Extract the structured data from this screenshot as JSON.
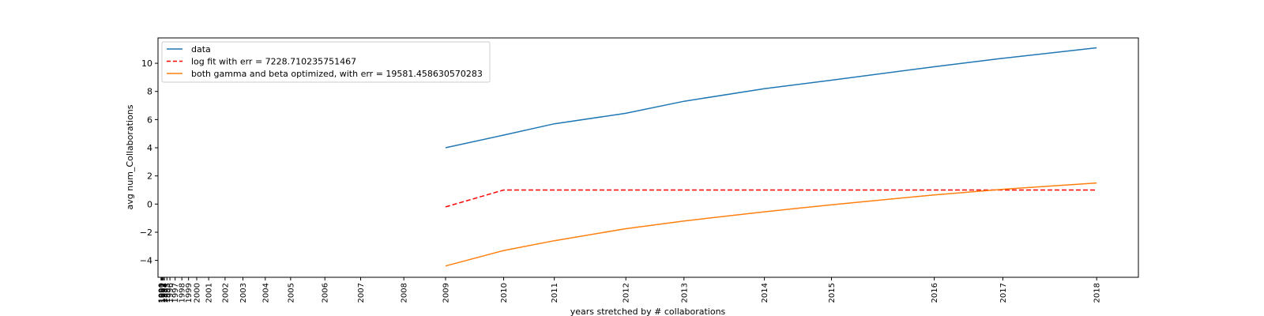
{
  "chart_data": {
    "type": "line",
    "title": "",
    "xlabel": "years stretched by # collaborations",
    "ylabel": "avg num_Collaborations",
    "x_ticks": [
      {
        "label": "1990",
        "pos": 0.0
      },
      {
        "label": "1991",
        "pos": 0.5
      },
      {
        "label": "1992",
        "pos": 1.0
      },
      {
        "label": "1993",
        "pos": 1.6
      },
      {
        "label": "1994",
        "pos": 2.3
      },
      {
        "label": "1995",
        "pos": 4.0
      },
      {
        "label": "1996",
        "pos": 6.0
      },
      {
        "label": "1997",
        "pos": 9.5
      },
      {
        "label": "1998",
        "pos": 14.0
      },
      {
        "label": "1999",
        "pos": 18.5
      },
      {
        "label": "2000",
        "pos": 24.0
      },
      {
        "label": "2001",
        "pos": 32.0
      },
      {
        "label": "2002",
        "pos": 43.0
      },
      {
        "label": "2003",
        "pos": 55.0
      },
      {
        "label": "2004",
        "pos": 70.0
      },
      {
        "label": "2005",
        "pos": 87.0
      },
      {
        "label": "2006",
        "pos": 110.0
      },
      {
        "label": "2007",
        "pos": 134.0
      },
      {
        "label": "2008",
        "pos": 163.0
      },
      {
        "label": "2009",
        "pos": 191.0
      },
      {
        "label": "2010",
        "pos": 230.0
      },
      {
        "label": "2011",
        "pos": 264.0
      },
      {
        "label": "2012",
        "pos": 312.0
      },
      {
        "label": "2013",
        "pos": 351.0
      },
      {
        "label": "2014",
        "pos": 405.0
      },
      {
        "label": "2015",
        "pos": 450.0
      },
      {
        "label": "2016",
        "pos": 519.0
      },
      {
        "label": "2017",
        "pos": 565.0
      },
      {
        "label": "2018",
        "pos": 628.0
      }
    ],
    "xlim": [
      -2,
      656
    ],
    "ylim": [
      -5.2,
      11.8
    ],
    "y_ticks": [
      -4,
      -2,
      0,
      2,
      4,
      6,
      8,
      10
    ],
    "x": [
      191.0,
      230.0,
      264.0,
      312.0,
      351.0,
      405.0,
      450.0,
      519.0,
      565.0,
      628.0
    ],
    "series": [
      {
        "name": "data",
        "color": "#1f77b4",
        "dash": "solid",
        "values": [
          4.0,
          4.9,
          5.7,
          6.45,
          7.3,
          8.2,
          8.8,
          9.75,
          10.35,
          11.1
        ]
      },
      {
        "name": "log fit with err = 7228.710235751467",
        "color": "#ff0000",
        "dash": "dashed",
        "values": [
          -0.2,
          1.0,
          1.0,
          1.0,
          1.0,
          1.0,
          1.0,
          1.0,
          1.0,
          1.0
        ]
      },
      {
        "name": "both gamma and beta optimized, with err = 19581.458630570283",
        "color": "#ff7f0e",
        "dash": "solid",
        "values": [
          -4.4,
          -3.3,
          -2.6,
          -1.75,
          -1.2,
          -0.55,
          -0.05,
          0.65,
          1.05,
          1.5
        ]
      }
    ],
    "grid": false,
    "legend_position": "upper-left"
  }
}
